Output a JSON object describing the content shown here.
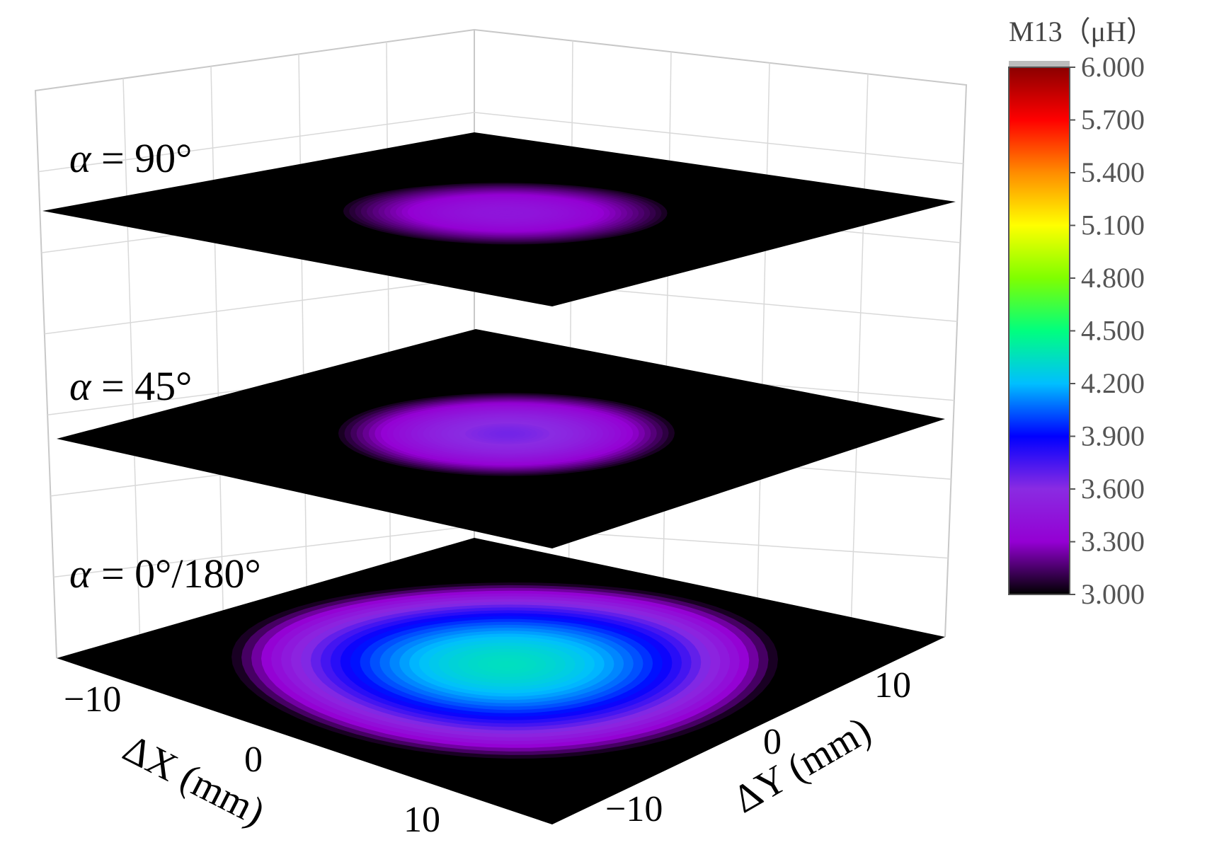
{
  "chart_data": {
    "type": "heatmap",
    "title": "",
    "xlabel": "ΔX (mm)",
    "ylabel": "ΔY (mm)",
    "x_ticks": [
      "−10",
      "0",
      "10"
    ],
    "y_ticks": [
      "−10",
      "0",
      "10"
    ],
    "xlim": [
      -15,
      15
    ],
    "ylim": [
      -15,
      15
    ],
    "colorbar": {
      "title": "M13（μH）",
      "min": 3.0,
      "max": 6.0,
      "ticks": [
        "3.000",
        "3.300",
        "3.600",
        "3.900",
        "4.200",
        "4.500",
        "4.800",
        "5.100",
        "5.400",
        "5.700",
        "6.000"
      ],
      "colors": [
        "#000000",
        "#9400d3",
        "#8a2be2",
        "#0000ff",
        "#00bfff",
        "#00ff7f",
        "#7fff00",
        "#ffff00",
        "#ff8c00",
        "#ff0000",
        "#8b0000"
      ]
    },
    "layers": [
      {
        "label": "α = 90°",
        "symbol": "α",
        "rest": " = 90°",
        "peak": 3.4,
        "radius_x_mm": 7.5,
        "radius_y_mm": 7.5
      },
      {
        "label": "α = 45°",
        "symbol": "α",
        "rest": " = 45°",
        "peak": 3.6,
        "radius_x_mm": 8,
        "radius_y_mm": 8
      },
      {
        "label": "α = 0°/180°",
        "symbol": "α",
        "rest": " = 0°/180°",
        "peak": 4.3,
        "radius_x_mm": 13,
        "radius_y_mm": 13
      }
    ],
    "grid": true,
    "legend_placement": "right"
  }
}
